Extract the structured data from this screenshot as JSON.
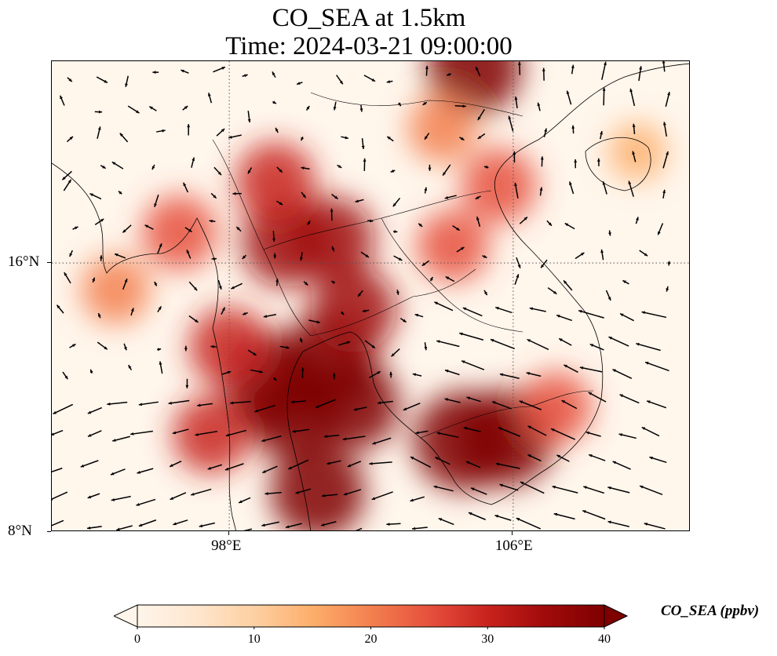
{
  "title_line1": "CO_SEA at 1.5km",
  "title_line2": "Time: 2024-03-21 09:00:00",
  "map": {
    "lon_range": [
      93,
      111
    ],
    "lat_range": [
      8,
      22
    ],
    "lon_ticks": [
      {
        "value": 98,
        "label": "98°E"
      },
      {
        "value": 106,
        "label": "106°E"
      }
    ],
    "lat_ticks": [
      {
        "value": 16,
        "label": "16°N"
      },
      {
        "value": 8,
        "label": "8°N"
      }
    ],
    "gridlines": "dotted"
  },
  "colorbar": {
    "label": "CO_SEA (ppbv)",
    "min": 0,
    "max": 40,
    "ticks": [
      "0",
      "10",
      "20",
      "30",
      "40"
    ],
    "colors": [
      "#fff5eb",
      "#fee6ce",
      "#fdd0a2",
      "#fdae6b",
      "#f3804f",
      "#e6503d",
      "#c8231d",
      "#a00a0a",
      "#7f0000"
    ],
    "extend": "both"
  },
  "chart_data": {
    "type": "heatmap",
    "variable": "CO_SEA",
    "units": "ppbv",
    "level": "1.5km",
    "hotspots": [
      {
        "lon": 104.6,
        "lat": 10.7,
        "value": 44
      },
      {
        "lon": 105.8,
        "lat": 10.8,
        "value": 42
      },
      {
        "lon": 99.2,
        "lat": 12.5,
        "value": 42
      },
      {
        "lon": 100.8,
        "lat": 13.1,
        "value": 41
      },
      {
        "lon": 99.8,
        "lat": 11.5,
        "value": 38
      },
      {
        "lon": 101.5,
        "lat": 11.8,
        "value": 38
      },
      {
        "lon": 100.5,
        "lat": 9.2,
        "value": 40
      },
      {
        "lon": 101.5,
        "lat": 14.6,
        "value": 34
      },
      {
        "lon": 99.6,
        "lat": 16.6,
        "value": 36
      },
      {
        "lon": 100.9,
        "lat": 16.7,
        "value": 33
      },
      {
        "lon": 99.3,
        "lat": 18.4,
        "value": 30
      },
      {
        "lon": 98.0,
        "lat": 13.5,
        "value": 30
      },
      {
        "lon": 97.5,
        "lat": 10.9,
        "value": 28
      },
      {
        "lon": 94.8,
        "lat": 15.2,
        "value": 22
      },
      {
        "lon": 96.6,
        "lat": 16.9,
        "value": 26
      },
      {
        "lon": 104.3,
        "lat": 16.5,
        "value": 24
      },
      {
        "lon": 104.9,
        "lat": 21.8,
        "value": 40
      },
      {
        "lon": 104.0,
        "lat": 20.0,
        "value": 22
      },
      {
        "lon": 105.6,
        "lat": 18.3,
        "value": 26
      },
      {
        "lon": 107.2,
        "lat": 11.7,
        "value": 24
      },
      {
        "lon": 109.5,
        "lat": 19.3,
        "value": 14
      }
    ]
  }
}
